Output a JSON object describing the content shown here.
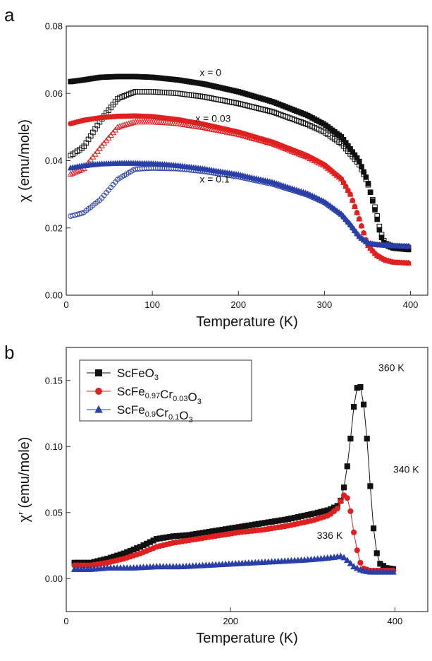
{
  "panel_a_letter": "a",
  "panel_b_letter": "b",
  "chart_data": [
    {
      "type": "scatter",
      "panel": "a",
      "xlabel": "Temperature (K)",
      "ylabel": "χ (emu/mole)",
      "xlim": [
        0,
        420
      ],
      "ylim": [
        0,
        0.08
      ],
      "xticks": [
        0,
        100,
        200,
        300,
        400
      ],
      "yticks": [
        0.0,
        0.02,
        0.04,
        0.06,
        0.08
      ],
      "ytick_labels": [
        "0.00",
        "0.02",
        "0.04",
        "0.06",
        "0.08"
      ],
      "annotations": [
        {
          "text": "x = 0",
          "x": 155,
          "y": 0.0652
        },
        {
          "text": "x = 0.03",
          "x": 150,
          "y": 0.0515
        },
        {
          "text": "x = 0.1",
          "x": 155,
          "y": 0.0335
        }
      ],
      "series": [
        {
          "color": "#111111",
          "marker": "square-filled",
          "x": [
            5,
            20,
            40,
            60,
            80,
            100,
            130,
            160,
            200,
            240,
            280,
            300,
            320,
            340,
            350,
            360,
            365,
            370,
            380,
            400
          ],
          "y": [
            0.0635,
            0.064,
            0.0648,
            0.065,
            0.065,
            0.0648,
            0.064,
            0.0628,
            0.0605,
            0.0575,
            0.0535,
            0.0508,
            0.047,
            0.04,
            0.034,
            0.024,
            0.018,
            0.015,
            0.014,
            0.0135
          ]
        },
        {
          "color": "#111111",
          "marker": "square-open",
          "x": [
            5,
            20,
            40,
            60,
            80,
            100,
            130,
            160,
            200,
            240,
            280,
            300,
            320,
            340,
            350,
            360,
            365,
            370,
            380,
            400
          ],
          "y": [
            0.0415,
            0.044,
            0.052,
            0.0585,
            0.0605,
            0.0605,
            0.06,
            0.059,
            0.057,
            0.0545,
            0.0508,
            0.0485,
            0.045,
            0.039,
            0.0335,
            0.025,
            0.019,
            0.0155,
            0.0145,
            0.014
          ]
        },
        {
          "color": "#e02020",
          "marker": "circle-filled",
          "x": [
            5,
            20,
            40,
            60,
            80,
            100,
            130,
            160,
            200,
            240,
            280,
            300,
            320,
            330,
            340,
            350,
            360,
            370,
            380,
            400
          ],
          "y": [
            0.051,
            0.052,
            0.0528,
            0.0532,
            0.0533,
            0.0531,
            0.0522,
            0.0508,
            0.0485,
            0.0455,
            0.0415,
            0.0388,
            0.0345,
            0.03,
            0.023,
            0.015,
            0.012,
            0.0105,
            0.0098,
            0.0095
          ]
        },
        {
          "color": "#e02020",
          "marker": "triangle-open",
          "x": [
            5,
            20,
            40,
            60,
            80,
            100,
            130,
            160,
            200,
            240,
            280,
            300,
            320,
            330,
            340,
            350,
            360,
            370,
            380,
            400
          ],
          "y": [
            0.036,
            0.0375,
            0.044,
            0.05,
            0.0515,
            0.0515,
            0.051,
            0.0498,
            0.0478,
            0.045,
            0.041,
            0.0385,
            0.0345,
            0.03,
            0.023,
            0.015,
            0.012,
            0.0105,
            0.0098,
            0.0095
          ]
        },
        {
          "color": "#2a3fa8",
          "marker": "triangle-filled",
          "x": [
            5,
            20,
            40,
            60,
            80,
            100,
            130,
            160,
            200,
            240,
            280,
            300,
            320,
            330,
            340,
            350,
            360,
            380,
            400
          ],
          "y": [
            0.0378,
            0.0385,
            0.039,
            0.0392,
            0.0392,
            0.0391,
            0.0385,
            0.0375,
            0.0358,
            0.0335,
            0.0302,
            0.0278,
            0.024,
            0.021,
            0.0175,
            0.0155,
            0.015,
            0.0147,
            0.0145
          ]
        },
        {
          "color": "#2a3fa8",
          "marker": "circle-open",
          "x": [
            5,
            20,
            40,
            60,
            80,
            100,
            130,
            160,
            200,
            240,
            280,
            300,
            320,
            330,
            340,
            350,
            360,
            380,
            400
          ],
          "y": [
            0.0235,
            0.0245,
            0.0285,
            0.0345,
            0.0375,
            0.0378,
            0.0376,
            0.0368,
            0.0352,
            0.033,
            0.0298,
            0.0275,
            0.0238,
            0.0208,
            0.0175,
            0.0155,
            0.015,
            0.0147,
            0.0145
          ]
        }
      ]
    },
    {
      "type": "scatter",
      "panel": "b",
      "xlabel": "Temperature (K)",
      "ylabel": "χ′ (emu/mole)",
      "xlim": [
        0,
        440
      ],
      "ylim": [
        -0.025,
        0.175
      ],
      "xticks": [
        0,
        200,
        400
      ],
      "yticks": [
        0.0,
        0.05,
        0.1,
        0.15
      ],
      "ytick_labels": [
        "0.00",
        "0.05",
        "0.10",
        "0.15"
      ],
      "legend_position": "top-left",
      "annotations": [
        {
          "text": "360 K",
          "x": 380,
          "y": 0.157
        },
        {
          "text": "340 K",
          "x": 398,
          "y": 0.08
        },
        {
          "text": "336 K",
          "x": 305,
          "y": 0.03
        }
      ],
      "series": [
        {
          "name_base": "ScFeO",
          "name_sub": "3",
          "name_rest": "",
          "name_sub2": "",
          "name_tail": "",
          "name_sub3": "",
          "color": "#111111",
          "marker": "square",
          "x": [
            10,
            30,
            50,
            70,
            90,
            110,
            130,
            150,
            180,
            210,
            240,
            270,
            300,
            320,
            330,
            335,
            340,
            345,
            350,
            355,
            360,
            365,
            370,
            375,
            380,
            390,
            400
          ],
          "y": [
            0.012,
            0.012,
            0.015,
            0.019,
            0.024,
            0.03,
            0.032,
            0.033,
            0.036,
            0.039,
            0.042,
            0.045,
            0.049,
            0.052,
            0.055,
            0.06,
            0.075,
            0.1,
            0.13,
            0.148,
            0.143,
            0.115,
            0.07,
            0.03,
            0.012,
            0.008,
            0.007
          ]
        },
        {
          "name_base": "ScFe",
          "name_sub": "0.97",
          "name_rest": "Cr",
          "name_sub2": "0.03",
          "name_tail": "O",
          "name_sub3": "3",
          "color": "#e02020",
          "marker": "circle",
          "x": [
            10,
            30,
            50,
            70,
            90,
            110,
            130,
            150,
            180,
            210,
            240,
            270,
            300,
            320,
            330,
            335,
            340,
            345,
            350,
            355,
            360,
            370,
            380,
            400
          ],
          "y": [
            0.01,
            0.01,
            0.012,
            0.015,
            0.019,
            0.024,
            0.027,
            0.029,
            0.032,
            0.035,
            0.037,
            0.04,
            0.044,
            0.048,
            0.053,
            0.06,
            0.065,
            0.055,
            0.035,
            0.018,
            0.008,
            0.006,
            0.006,
            0.006
          ]
        },
        {
          "name_base": "ScFe",
          "name_sub": "0.9",
          "name_rest": "Cr",
          "name_sub2": "0.1",
          "name_tail": "O",
          "name_sub3": "3",
          "color": "#2a3fa8",
          "marker": "triangle",
          "x": [
            10,
            30,
            50,
            80,
            110,
            140,
            170,
            200,
            230,
            260,
            290,
            310,
            325,
            335,
            340,
            345,
            350,
            360,
            370,
            380,
            400
          ],
          "y": [
            0.007,
            0.007,
            0.008,
            0.008,
            0.009,
            0.009,
            0.01,
            0.011,
            0.012,
            0.013,
            0.014,
            0.015,
            0.016,
            0.017,
            0.015,
            0.012,
            0.009,
            0.006,
            0.005,
            0.005,
            0.005
          ]
        }
      ]
    }
  ]
}
